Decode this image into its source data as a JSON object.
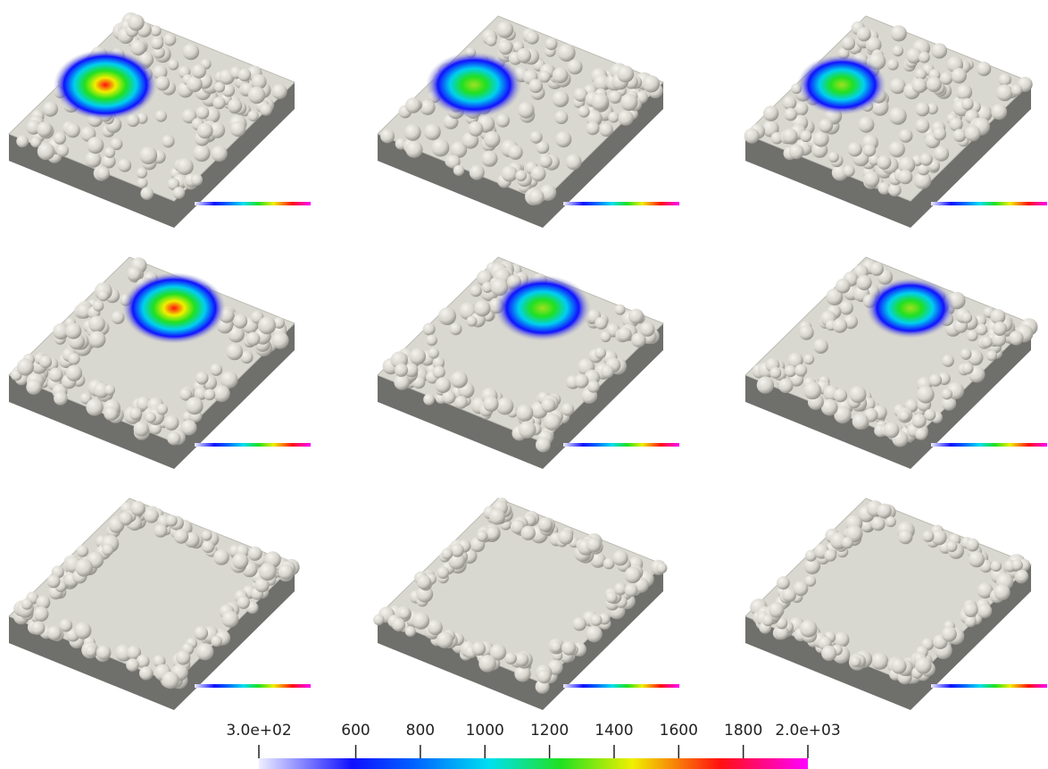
{
  "colorbar": {
    "lim": [
      300,
      2000
    ],
    "ticks": [
      {
        "value": 300,
        "label": "3.0e+02"
      },
      600,
      800,
      1000,
      1200,
      1400,
      1600,
      1800,
      {
        "value": 2000,
        "label": "2.0e+03"
      }
    ]
  }
}
